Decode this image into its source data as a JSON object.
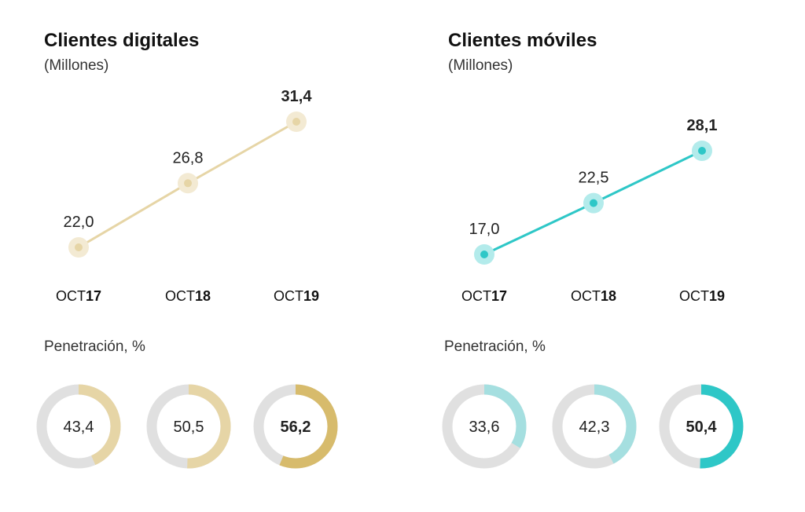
{
  "chart_data": [
    {
      "type": "line",
      "title": "Clientes digitales",
      "subtitle": "(Millones)",
      "categories": [
        {
          "prefix": "OCT",
          "suffix": "17"
        },
        {
          "prefix": "OCT",
          "suffix": "18"
        },
        {
          "prefix": "OCT",
          "suffix": "19"
        }
      ],
      "values": [
        22.0,
        26.8,
        31.4
      ],
      "value_labels": [
        "22,0",
        "26,8",
        "31,4"
      ],
      "color": "#e6d5a6",
      "halo_color": "#f3ead3",
      "penetration": {
        "label": "Penetración, %",
        "values": [
          43.4,
          50.5,
          56.2
        ],
        "labels": [
          "43,4",
          "50,5",
          "56,2"
        ],
        "colors": [
          "#e6d5a6",
          "#e6d5a6",
          "#d7bb6c"
        ],
        "track_color": "#e0e0e0"
      }
    },
    {
      "type": "line",
      "title": "Clientes móviles",
      "subtitle": "(Millones)",
      "categories": [
        {
          "prefix": "OCT",
          "suffix": "17"
        },
        {
          "prefix": "OCT",
          "suffix": "18"
        },
        {
          "prefix": "OCT",
          "suffix": "19"
        }
      ],
      "values": [
        17.0,
        22.5,
        28.1
      ],
      "value_labels": [
        "17,0",
        "22,5",
        "28,1"
      ],
      "color": "#2ec7c7",
      "halo_color": "#b3ebeb",
      "penetration": {
        "label": "Penetración, %",
        "values": [
          33.6,
          42.3,
          50.4
        ],
        "labels": [
          "33,6",
          "42,3",
          "50,4"
        ],
        "colors": [
          "#a5dfe0",
          "#a5dfe0",
          "#2ec7c7"
        ],
        "track_color": "#e0e0e0"
      }
    }
  ]
}
